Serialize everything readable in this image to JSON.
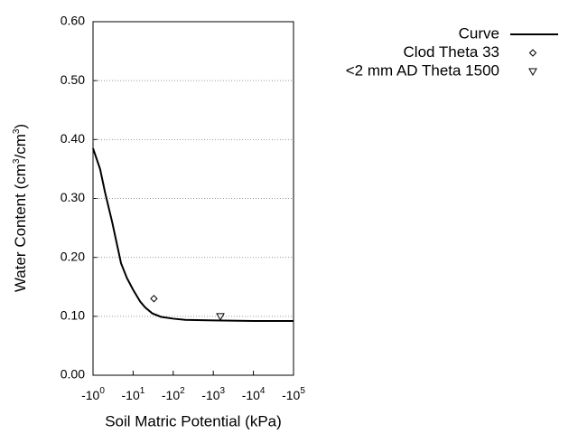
{
  "chart_data": {
    "type": "line",
    "x_label": "Soil Matric Potential (kPa)",
    "y_label": [
      "Water Content (cm",
      "3",
      "/cm",
      "3",
      ")"
    ],
    "xscale": "log-negative",
    "xlim": [
      -1,
      -100000
    ],
    "xticks": [
      {
        "value": -1,
        "label": "-10",
        "sup": "0"
      },
      {
        "value": -10,
        "label": "-10",
        "sup": "1"
      },
      {
        "value": -100,
        "label": "-10",
        "sup": "2"
      },
      {
        "value": -1000,
        "label": "-10",
        "sup": "3"
      },
      {
        "value": -10000,
        "label": "-10",
        "sup": "4"
      },
      {
        "value": -100000,
        "label": "-10",
        "sup": "5"
      }
    ],
    "ylim": [
      0,
      0.6
    ],
    "yticks": [
      {
        "value": 0,
        "label": "0.00"
      },
      {
        "value": 0.1,
        "label": "0.10"
      },
      {
        "value": 0.2,
        "label": "0.20"
      },
      {
        "value": 0.3,
        "label": "0.30"
      },
      {
        "value": 0.4,
        "label": "0.40"
      },
      {
        "value": 0.5,
        "label": "0.50"
      },
      {
        "value": 0.6,
        "label": "0.60"
      }
    ],
    "grid": true,
    "legend": "top-right",
    "series": [
      {
        "name": "Curve",
        "kind": "line",
        "color": "#000000",
        "x": [
          -1,
          -1.5,
          -2,
          -3,
          -5,
          -7,
          -10,
          -15,
          -20,
          -30,
          -50,
          -100,
          -200,
          -1000,
          -10000,
          -100000
        ],
        "values": [
          0.385,
          0.35,
          0.31,
          0.26,
          0.19,
          0.165,
          0.145,
          0.125,
          0.115,
          0.105,
          0.099,
          0.096,
          0.094,
          0.093,
          0.092,
          0.092
        ]
      },
      {
        "name": "Clod Theta 33",
        "kind": "scatter",
        "marker": "diamond",
        "color": "#000000",
        "x": [
          -33
        ],
        "values": [
          0.13
        ]
      },
      {
        "name": "<2 mm AD Theta 1500",
        "kind": "scatter",
        "marker": "triangle-down",
        "color": "#000000",
        "x": [
          -1500
        ],
        "values": [
          0.1
        ]
      }
    ]
  }
}
